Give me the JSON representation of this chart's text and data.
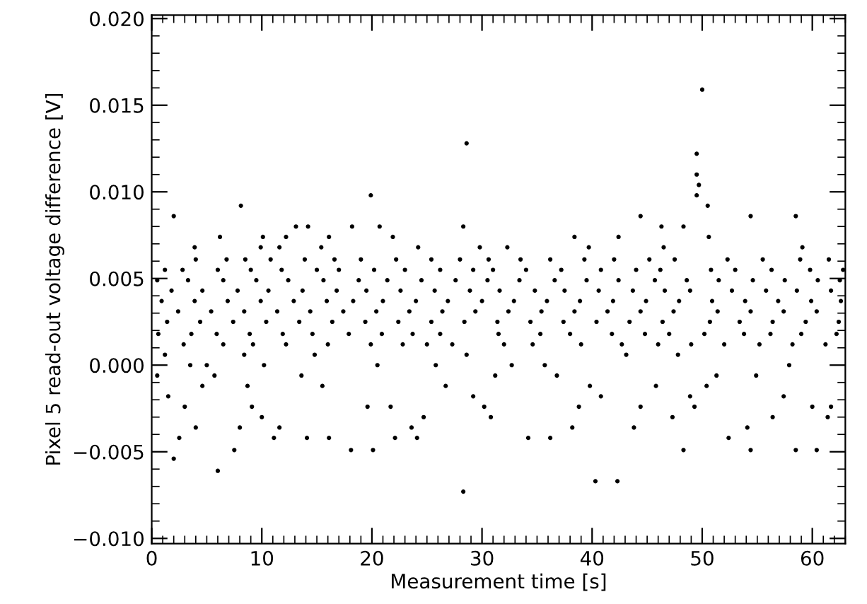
{
  "chart_data": {
    "type": "scatter",
    "xlabel": "Measurement time [s]",
    "ylabel": "Pixel 5 read-out voltage difference [V]",
    "marker": "circle",
    "grid": false,
    "xlim": [
      0,
      63
    ],
    "xticks": [
      0,
      10,
      20,
      30,
      40,
      50,
      60
    ],
    "ylim": [
      -0.0103,
      0.0202
    ],
    "yticks": [
      {
        "value": -0.01,
        "label": "−0.010"
      },
      {
        "value": -0.005,
        "label": "−0.005"
      },
      {
        "value": 0,
        "label": "0.000"
      },
      {
        "value": 0.005,
        "label": "0.005"
      },
      {
        "value": 0.01,
        "label": "0.010"
      },
      {
        "value": 0.015,
        "label": "0.015"
      },
      {
        "value": 0.02,
        "label": "0.020"
      }
    ],
    "series": [
      {
        "color": "#000000",
        "x": [
          50.0,
          28.6,
          49.5,
          49.5,
          49.7,
          49.5,
          50.5,
          19.9,
          8.1,
          2.0,
          44.4,
          54.4,
          58.5,
          28.3,
          40.3,
          42.3,
          6.0,
          2.0,
          2.5,
          7.5,
          18.1,
          20.1,
          14.1,
          16.1,
          22.1,
          24.1,
          11.1,
          34.2,
          36.2,
          48.3,
          52.4,
          54.4,
          58.5,
          60.4
        ],
        "values": [
          0.0159,
          0.0128,
          0.0122,
          0.011,
          0.0104,
          0.0098,
          0.0092,
          0.0098,
          0.0092,
          0.0086,
          0.0086,
          0.0086,
          0.0086,
          -0.0073,
          -0.0067,
          -0.0067,
          -0.0061,
          -0.0054,
          -0.0042,
          -0.0049,
          -0.0049,
          -0.0049,
          -0.0042,
          -0.0042,
          -0.0042,
          -0.0042,
          -0.0042,
          -0.0042,
          -0.0042,
          -0.0049,
          -0.0042,
          -0.0049,
          -0.0049,
          -0.0049
        ]
      },
      {
        "color": "#000000",
        "x": [
          4.0,
          8.0,
          11.6,
          23.6,
          38.2,
          43.8,
          54.1,
          3.0,
          9.1,
          19.6,
          21.7,
          30.2,
          38.8,
          44.4,
          49.3,
          60.0,
          61.7,
          1.5,
          10.0,
          24.7,
          30.8,
          47.3,
          56.4,
          61.4,
          29.2,
          40.8,
          48.9,
          57.4
        ],
        "values": [
          -0.0036,
          -0.0036,
          -0.0036,
          -0.0036,
          -0.0036,
          -0.0036,
          -0.0036,
          -0.0024,
          -0.0024,
          -0.0024,
          -0.0024,
          -0.0024,
          -0.0024,
          -0.0024,
          -0.0024,
          -0.0024,
          -0.0024,
          -0.0018,
          -0.003,
          -0.003,
          -0.003,
          -0.003,
          -0.003,
          -0.003,
          -0.0018,
          -0.0018,
          -0.0018,
          -0.0018
        ]
      },
      {
        "color": "#000000",
        "x": [
          4.6,
          8.7,
          15.5,
          26.7,
          39.8,
          50.4,
          45.8,
          0.5,
          5.7,
          13.6,
          31.2,
          36.8,
          51.3,
          54.9,
          3.5,
          5.0,
          10.2,
          20.5,
          25.8,
          32.7,
          35.7,
          57.9,
          1.2,
          8.4,
          14.8,
          28.6,
          43.1,
          47.8
        ],
        "values": [
          -0.0012,
          -0.0012,
          -0.0012,
          -0.0012,
          -0.0012,
          -0.0012,
          -0.0012,
          -0.0006,
          -0.0006,
          -0.0006,
          -0.0006,
          -0.0006,
          -0.0006,
          -0.0006,
          0.0,
          0.0,
          0.0,
          0.0,
          0.0,
          0.0,
          0.0,
          0.0,
          0.0006,
          0.0006,
          0.0006,
          0.0006,
          0.0006,
          0.0006
        ]
      },
      {
        "color": "#000000",
        "x": [
          6.2,
          13.1,
          14.2,
          18.2,
          20.7,
          28.3,
          46.3,
          48.3,
          10.1,
          12.2,
          16.1,
          21.9,
          38.4,
          42.4,
          50.6,
          3.9,
          9.9,
          11.6,
          15.4,
          24.2,
          29.8,
          32.3,
          39.7,
          46.5,
          59.1
        ],
        "values": [
          0.0074,
          0.008,
          0.008,
          0.008,
          0.008,
          0.008,
          0.008,
          0.008,
          0.0074,
          0.0074,
          0.0074,
          0.0074,
          0.0074,
          0.0074,
          0.0074,
          0.0068,
          0.0068,
          0.0068,
          0.0068,
          0.0068,
          0.0068,
          0.0068,
          0.0068,
          0.0068,
          0.0068
        ]
      },
      {
        "color": "#000000",
        "x": [
          0.5,
          3.3,
          6.5,
          9.5,
          12.4,
          15.6,
          18.8,
          21.4,
          24.5,
          27.6,
          30.5,
          33.4,
          36.6,
          39.5,
          42.4,
          45.7,
          48.6,
          51.5,
          54.6,
          57.5,
          60.5,
          62.5
        ],
        "values": [
          0.0049,
          0.0049,
          0.0049,
          0.0049,
          0.0049,
          0.0049,
          0.0049,
          0.0049,
          0.0049,
          0.0049,
          0.0049,
          0.0049,
          0.0049,
          0.0049,
          0.0049,
          0.0049,
          0.0049,
          0.0049,
          0.0049,
          0.0049,
          0.0049,
          0.0049
        ]
      },
      {
        "color": "#000000",
        "x": [
          1.8,
          4.6,
          7.8,
          10.6,
          13.7,
          16.8,
          19.5,
          22.6,
          25.7,
          28.9,
          31.6,
          34.8,
          37.5,
          40.6,
          43.7,
          46.6,
          48.9,
          52.7,
          55.8,
          58.6,
          61.7
        ],
        "values": [
          0.0043,
          0.0043,
          0.0043,
          0.0043,
          0.0043,
          0.0043,
          0.0043,
          0.0043,
          0.0043,
          0.0043,
          0.0043,
          0.0043,
          0.0043,
          0.0043,
          0.0043,
          0.0043,
          0.0043,
          0.0043,
          0.0043,
          0.0043,
          0.0043
        ]
      },
      {
        "color": "#000000",
        "x": [
          0.9,
          3.9,
          6.9,
          9.9,
          12.9,
          15.9,
          18.3,
          21.0,
          24.0,
          26.9,
          30.0,
          32.9,
          35.9,
          38.9,
          41.9,
          44.9,
          47.9,
          50.9,
          53.9,
          56.9,
          59.9,
          62.6
        ],
        "values": [
          0.0037,
          0.0037,
          0.0037,
          0.0037,
          0.0037,
          0.0037,
          0.0037,
          0.0037,
          0.0037,
          0.0037,
          0.0037,
          0.0037,
          0.0037,
          0.0037,
          0.0037,
          0.0037,
          0.0037,
          0.0037,
          0.0037,
          0.0037,
          0.0037,
          0.0037
        ]
      },
      {
        "color": "#000000",
        "x": [
          2.4,
          5.4,
          8.4,
          11.4,
          14.4,
          17.4,
          20.4,
          23.4,
          26.4,
          29.4,
          32.4,
          35.4,
          38.4,
          41.4,
          44.4,
          47.4,
          51.4,
          54.4,
          57.4,
          60.4
        ],
        "values": [
          0.0031,
          0.0031,
          0.0031,
          0.0031,
          0.0031,
          0.0031,
          0.0031,
          0.0031,
          0.0031,
          0.0031,
          0.0031,
          0.0031,
          0.0031,
          0.0031,
          0.0031,
          0.0031,
          0.0031,
          0.0031,
          0.0031,
          0.0031
        ]
      },
      {
        "color": "#000000",
        "x": [
          1.4,
          4.4,
          7.4,
          10.4,
          13.4,
          16.4,
          19.4,
          22.4,
          25.4,
          28.4,
          31.4,
          34.4,
          37.4,
          40.4,
          43.4,
          46.4,
          50.7,
          53.4,
          56.4,
          59.4,
          62.4
        ],
        "values": [
          0.0025,
          0.0025,
          0.0025,
          0.0025,
          0.0025,
          0.0025,
          0.0025,
          0.0025,
          0.0025,
          0.0025,
          0.0025,
          0.0025,
          0.0025,
          0.0025,
          0.0025,
          0.0025,
          0.0025,
          0.0025,
          0.0025,
          0.0025,
          0.0025
        ]
      },
      {
        "color": "#000000",
        "x": [
          1.2,
          2.8,
          6.0,
          9.0,
          11.8,
          15.0,
          17.0,
          20.2,
          23.0,
          26.2,
          29.2,
          31.0,
          34.0,
          37.2,
          40.8,
          44.0,
          46.2,
          50.8,
          53.0,
          56.3,
          59.8,
          62.8
        ],
        "values": [
          0.0055,
          0.0055,
          0.0055,
          0.0055,
          0.0055,
          0.0055,
          0.0055,
          0.0055,
          0.0055,
          0.0055,
          0.0055,
          0.0055,
          0.0055,
          0.0055,
          0.0055,
          0.0055,
          0.0055,
          0.0055,
          0.0055,
          0.0055,
          0.0055,
          0.0055
        ]
      },
      {
        "color": "#000000",
        "x": [
          4.0,
          6.8,
          8.5,
          10.8,
          13.9,
          16.6,
          19.0,
          22.2,
          25.4,
          28.0,
          30.6,
          33.5,
          36.2,
          39.3,
          42.0,
          45.2,
          47.5,
          52.3,
          55.5,
          58.9,
          61.5
        ],
        "values": [
          0.0061,
          0.0061,
          0.0061,
          0.0061,
          0.0061,
          0.0061,
          0.0061,
          0.0061,
          0.0061,
          0.0061,
          0.0061,
          0.0061,
          0.0061,
          0.0061,
          0.0061,
          0.0061,
          0.0061,
          0.0061,
          0.0061,
          0.0061,
          0.0061
        ]
      },
      {
        "color": "#000000",
        "x": [
          0.6,
          3.6,
          5.9,
          8.9,
          11.9,
          14.6,
          17.9,
          20.9,
          23.7,
          26.2,
          31.5,
          35.3,
          38.0,
          41.8,
          44.8,
          47.0,
          50.2,
          53.8,
          56.2,
          59.0,
          62.2
        ],
        "values": [
          0.0018,
          0.0018,
          0.0018,
          0.0018,
          0.0018,
          0.0018,
          0.0018,
          0.0018,
          0.0018,
          0.0018,
          0.0018,
          0.0018,
          0.0018,
          0.0018,
          0.0018,
          0.0018,
          0.0018,
          0.0018,
          0.0018,
          0.0018,
          0.0018
        ]
      },
      {
        "color": "#000000",
        "x": [
          2.9,
          6.5,
          9.2,
          12.2,
          16.0,
          19.9,
          22.8,
          25.0,
          27.3,
          32.0,
          34.6,
          39.0,
          42.7,
          46.0,
          49.0,
          52.0,
          55.2,
          58.2,
          61.2
        ],
        "values": [
          0.0012,
          0.0012,
          0.0012,
          0.0012,
          0.0012,
          0.0012,
          0.0012,
          0.0012,
          0.0012,
          0.0012,
          0.0012,
          0.0012,
          0.0012,
          0.0012,
          0.0012,
          0.0012,
          0.0012,
          0.0012,
          0.0012
        ]
      }
    ]
  }
}
